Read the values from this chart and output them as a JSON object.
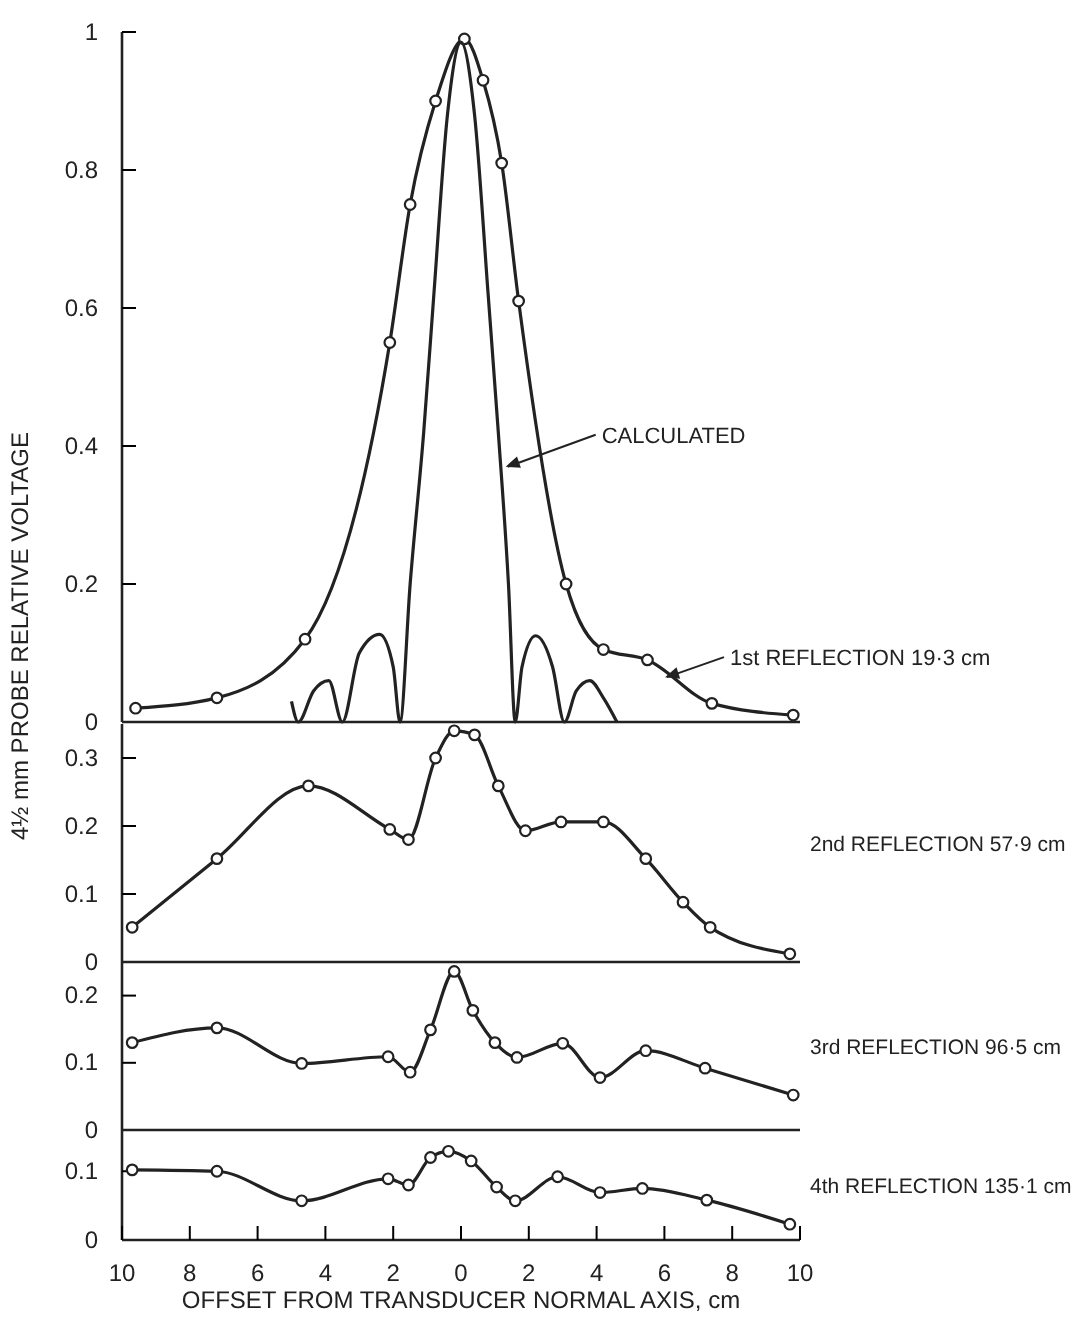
{
  "chart_data": [
    {
      "type": "line",
      "ylabel": "4½ mm PROBE RELATIVE VOLTAGE",
      "xlim": [
        -10,
        10
      ],
      "ylim": [
        0,
        1.0
      ],
      "yticks": [
        0,
        0.2,
        0.4,
        0.6,
        0.8,
        1.0
      ],
      "tick_labels": "y",
      "grid": false,
      "line_style": "solid",
      "series": [
        {
          "color": "#222222",
          "marker": "circle",
          "x": [
            -9.6,
            -7.2,
            -4.6,
            -2.1,
            -1.5,
            -0.75,
            0.1,
            0.65,
            1.2,
            1.7,
            3.1,
            4.2,
            5.5,
            7.4,
            9.8
          ],
          "values": [
            0.02,
            0.035,
            0.12,
            0.55,
            0.75,
            0.9,
            0.99,
            0.93,
            0.81,
            0.61,
            0.2,
            0.105,
            0.09,
            0.027,
            0.01
          ]
        },
        {
          "color": "#222222",
          "marker": "none",
          "x": [
            -5.0,
            -4.8,
            -4.35,
            -3.9,
            -3.5,
            -3.0,
            -2.4,
            -2.0,
            -1.8,
            -1.5,
            -1.1,
            -0.8,
            -0.4,
            0,
            0.4,
            0.8,
            1.1,
            1.4,
            1.6,
            1.8,
            2.2,
            2.7,
            3.05,
            3.4,
            3.8,
            4.2,
            4.6
          ],
          "values": [
            0.03,
            0,
            0.045,
            0.06,
            0,
            0.1,
            0.127,
            0.08,
            0,
            0.2,
            0.42,
            0.62,
            0.88,
            0.985,
            0.88,
            0.62,
            0.42,
            0.2,
            0,
            0.08,
            0.125,
            0.08,
            0,
            0.045,
            0.06,
            0.035,
            0
          ]
        }
      ],
      "annotations": [
        {
          "text": "CALCULATED",
          "x": 1.2,
          "y": 0.37
        },
        {
          "text": "1st REFLECTION 19·3 cm",
          "x": 5.9,
          "y": 0.065
        }
      ]
    },
    {
      "type": "line",
      "xlim": [
        -10,
        10
      ],
      "ylim": [
        0,
        0.35
      ],
      "yticks": [
        0,
        0.1,
        0.2,
        0.3
      ],
      "tick_labels": "y",
      "grid": false,
      "line_style": "solid",
      "series": [
        {
          "color": "#222222",
          "marker": "circle",
          "x": [
            -9.7,
            -7.2,
            -4.5,
            -2.1,
            -1.55,
            -0.75,
            -0.2,
            0.4,
            1.1,
            1.9,
            2.95,
            4.2,
            5.45,
            6.55,
            7.35,
            9.7
          ],
          "values": [
            0.051,
            0.152,
            0.259,
            0.195,
            0.18,
            0.3,
            0.34,
            0.334,
            0.259,
            0.193,
            0.206,
            0.206,
            0.152,
            0.088,
            0.051,
            0.012
          ]
        }
      ],
      "annotations": [
        "2nd REFLECTION 57·9 cm"
      ]
    },
    {
      "type": "line",
      "xlim": [
        -10,
        10
      ],
      "ylim": [
        0,
        0.25
      ],
      "yticks": [
        0,
        0.1,
        0.2
      ],
      "tick_labels": "y",
      "grid": false,
      "line_style": "solid",
      "series": [
        {
          "color": "#222222",
          "marker": "circle",
          "x": [
            -9.7,
            -7.2,
            -4.7,
            -2.15,
            -1.5,
            -0.9,
            -0.2,
            0.35,
            1.0,
            1.65,
            3.0,
            4.1,
            5.45,
            7.2,
            9.8
          ],
          "values": [
            0.13,
            0.152,
            0.099,
            0.109,
            0.086,
            0.149,
            0.236,
            0.178,
            0.13,
            0.108,
            0.129,
            0.078,
            0.118,
            0.092,
            0.052
          ]
        }
      ],
      "annotations": [
        "3rd REFLECTION 96·5 cm"
      ]
    },
    {
      "type": "line",
      "xlabel": "OFFSET FROM TRANSDUCER NORMAL AXIS, cm",
      "xlim": [
        -10,
        10
      ],
      "xticks": [
        {
          "value": -10,
          "label": "10"
        },
        {
          "value": -8,
          "label": "8"
        },
        {
          "value": -6,
          "label": "6"
        },
        {
          "value": -4,
          "label": "4"
        },
        {
          "value": -2,
          "label": "2"
        },
        0,
        2,
        4,
        6,
        8,
        10
      ],
      "ylim": [
        0,
        0.16
      ],
      "yticks": [
        0,
        0.1
      ],
      "grid": false,
      "line_style": "solid",
      "series": [
        {
          "color": "#222222",
          "marker": "circle",
          "x": [
            -9.7,
            -7.2,
            -4.7,
            -2.15,
            -1.55,
            -0.9,
            -0.37,
            0.3,
            1.05,
            1.6,
            2.85,
            4.1,
            5.35,
            7.25,
            9.7
          ],
          "values": [
            0.102,
            0.1,
            0.057,
            0.089,
            0.08,
            0.12,
            0.129,
            0.115,
            0.077,
            0.057,
            0.092,
            0.069,
            0.075,
            0.058,
            0.023
          ]
        }
      ],
      "annotations": [
        "4th REFLECTION 135·1 cm"
      ]
    }
  ]
}
